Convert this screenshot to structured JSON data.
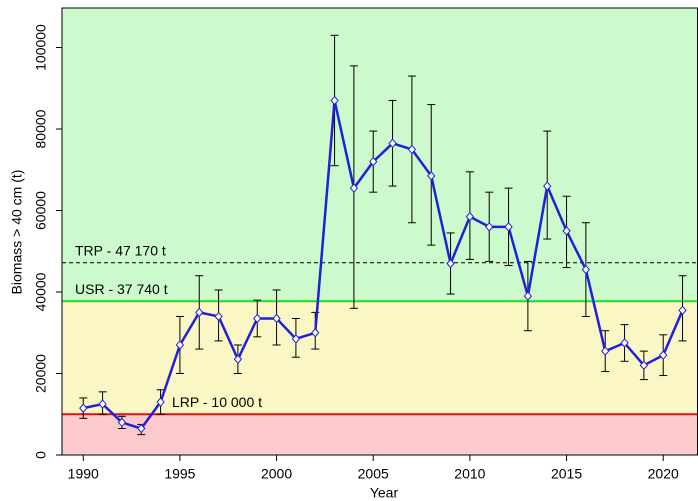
{
  "chart_data": {
    "type": "line",
    "x_label": "Year",
    "y_label": "Biomass > 40 cm (t)",
    "x": [
      1990,
      1991,
      1992,
      1993,
      1994,
      1995,
      1996,
      1997,
      1998,
      1999,
      2000,
      2001,
      2002,
      2003,
      2004,
      2005,
      2006,
      2007,
      2008,
      2009,
      2010,
      2011,
      2012,
      2013,
      2014,
      2015,
      2016,
      2017,
      2018,
      2019,
      2020,
      2021
    ],
    "series": [
      {
        "color": "#1f1fdd",
        "values": [
          11500,
          12500,
          8000,
          6500,
          13000,
          27000,
          35000,
          34000,
          23500,
          33500,
          33500,
          28500,
          30000,
          87000,
          65500,
          72000,
          76500,
          75000,
          68500,
          47000,
          58500,
          56000,
          56000,
          39000,
          66000,
          55000,
          45500,
          25500,
          27500,
          22000,
          24500,
          35500
        ],
        "lower": [
          9000,
          10000,
          6500,
          5000,
          10000,
          20000,
          26000,
          28000,
          20000,
          29000,
          27000,
          24000,
          26000,
          71000,
          36000,
          64500,
          66000,
          57000,
          51500,
          39500,
          48000,
          47500,
          46500,
          30500,
          53000,
          46000,
          34000,
          20500,
          23000,
          18500,
          19500,
          28000
        ],
        "upper": [
          14000,
          15500,
          9500,
          7500,
          16000,
          34000,
          44000,
          40500,
          27000,
          38000,
          40500,
          33500,
          35000,
          103000,
          95500,
          79500,
          87000,
          93000,
          86000,
          54500,
          69500,
          64500,
          65500,
          47500,
          79500,
          63500,
          57000,
          30500,
          32000,
          25500,
          29500,
          44000
        ]
      }
    ],
    "reference_lines": [
      {
        "label": "TRP - 47 170 t",
        "value": 47170,
        "color": "#000000",
        "dashed": true,
        "zone_color": "#ccfacc"
      },
      {
        "label": "USR - 37 740 t",
        "value": 37740,
        "color": "#22dd22",
        "dashed": false,
        "zone_color": "#fbf7c4"
      },
      {
        "label": "LRP - 10 000 t",
        "value": 10000,
        "color": "#e01010",
        "dashed": false,
        "zone_color": "#fccaca"
      }
    ],
    "xlim": [
      1988.9,
      2021.8
    ],
    "xticks": [
      1990,
      1995,
      2000,
      2005,
      2010,
      2015,
      2020
    ],
    "ylim": [
      0,
      109700
    ],
    "yticks": [
      0,
      20000,
      40000,
      60000,
      80000,
      100000
    ]
  }
}
